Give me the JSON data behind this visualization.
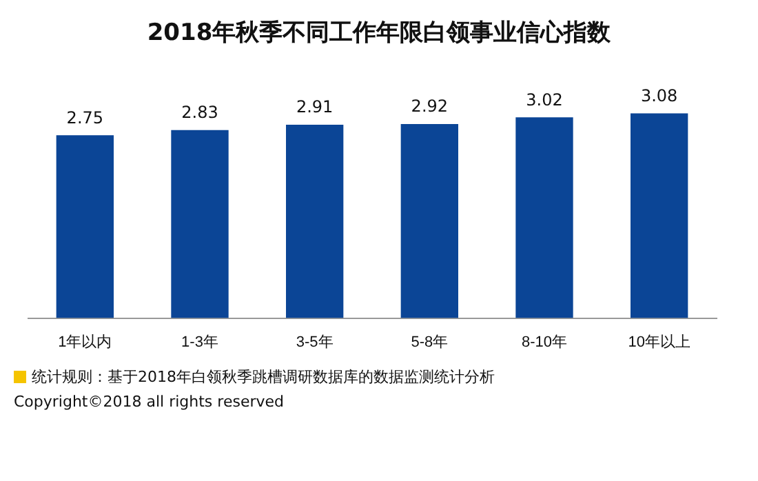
{
  "chart_data": {
    "type": "bar",
    "title": "2018年秋季不同工作年限白领事业信心指数",
    "categories": [
      "1年以内",
      "1-3年",
      "3-5年",
      "5-8年",
      "8-10年",
      "10年以上"
    ],
    "values": [
      2.75,
      2.83,
      2.91,
      2.92,
      3.02,
      3.08
    ],
    "color": "#0b4596",
    "tick_labels": "x",
    "grid": false,
    "legend": false,
    "data_labels": true,
    "annotations": [
      "统计规则：基于2018年白领秋季跳槽调研数据库的数据监测统计分析",
      "Copyright©2018 all rights reserved"
    ]
  }
}
